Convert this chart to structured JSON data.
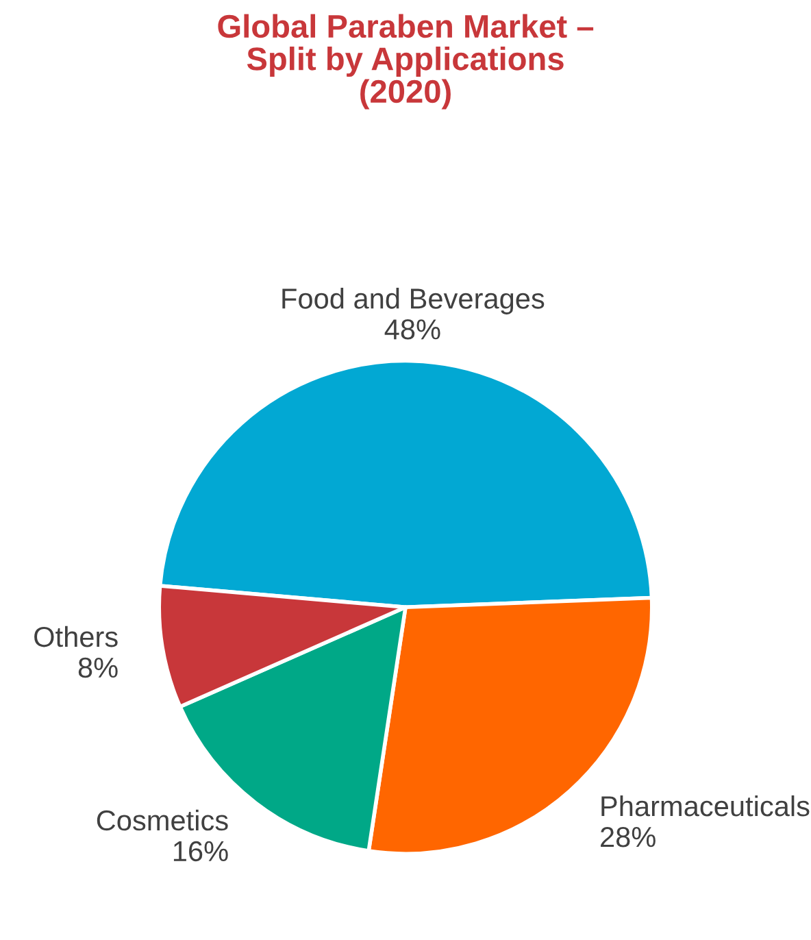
{
  "chart_data": {
    "type": "pie",
    "title": "Global Paraben Market –\nSplit by Applications\n(2020)",
    "categories": [
      "Food and Beverages",
      "Pharmaceuticals",
      "Cosmetics",
      "Others"
    ],
    "values": [
      48,
      28,
      16,
      8
    ],
    "value_labels": [
      "48%",
      "28%",
      "16%",
      "8%"
    ],
    "colors": [
      "#02a8d3",
      "#ff6600",
      "#00a887",
      "#c8373a"
    ],
    "legend": false
  }
}
